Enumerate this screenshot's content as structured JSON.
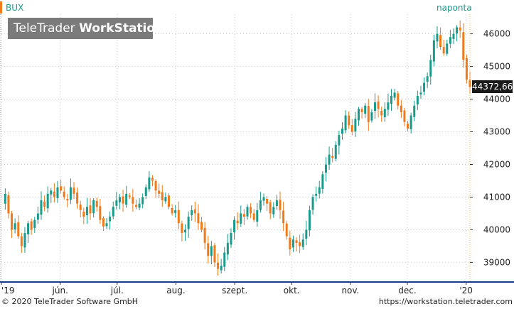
{
  "symbol": "BUX",
  "period": "naponta",
  "watermark": {
    "brand": "TeleTrader",
    "product": "WorkStation"
  },
  "last_value_label": "44372,66",
  "footer": {
    "copyright": "© 2020 TeleTrader Software GmbH",
    "url": "https://workstation.teletrader.com"
  },
  "colors": {
    "up": "#1a9a8a",
    "down": "#f07a1a",
    "grid": "#cccccc",
    "axis": "#1a3a8a"
  },
  "chart_data": {
    "type": "candlestick",
    "title": "BUX",
    "x_range": [
      "2019-05-01",
      "2020-01-03"
    ],
    "ylim": [
      38400,
      46600
    ],
    "y_ticks": [
      39000,
      40000,
      41000,
      42000,
      43000,
      44000,
      45000,
      46000
    ],
    "y_tick_labels": [
      "39000",
      "40000",
      "41000",
      "42000",
      "43000",
      "44000",
      "45000",
      "46000"
    ],
    "x_tick_labels": [
      "'19",
      "jún.",
      "júl.",
      "aug.",
      "szept.",
      "okt.",
      "nov.",
      "dec.",
      "'20"
    ],
    "x_tick_dates": [
      "2019-05-01",
      "2019-06-01",
      "2019-07-01",
      "2019-08-01",
      "2019-09-01",
      "2019-10-01",
      "2019-11-01",
      "2019-12-01",
      "2020-01-01"
    ],
    "last_value": 44372.66,
    "grid": true,
    "closes": [
      41100,
      40500,
      40000,
      40200,
      39800,
      39500,
      39900,
      40200,
      40000,
      40300,
      40500,
      40900,
      40700,
      41100,
      41200,
      41000,
      41300,
      41200,
      41000,
      40900,
      41300,
      41100,
      40800,
      40600,
      40400,
      40700,
      40500,
      40900,
      40700,
      40300,
      40100,
      40200,
      40400,
      40700,
      40900,
      41000,
      40800,
      41100,
      41000,
      40800,
      40700,
      40800,
      41000,
      41300,
      41600,
      41500,
      41200,
      41100,
      40900,
      41000,
      40700,
      40500,
      40600,
      40200,
      39900,
      40000,
      40400,
      40600,
      40500,
      40200,
      40000,
      39600,
      39200,
      39500,
      39000,
      38800,
      38900,
      39300,
      39600,
      39900,
      40300,
      40200,
      40500,
      40400,
      40700,
      40500,
      40300,
      40600,
      40900,
      41000,
      40800,
      40500,
      40700,
      40900,
      40600,
      40200,
      39800,
      39400,
      39700,
      39600,
      39500,
      39700,
      40000,
      40600,
      41000,
      41100,
      41300,
      41700,
      42000,
      42300,
      42200,
      42600,
      42900,
      43100,
      43500,
      43200,
      43000,
      43400,
      43700,
      43600,
      43800,
      43300,
      43600,
      43900,
      43700,
      43500,
      43700,
      43900,
      44100,
      44200,
      43800,
      43600,
      43300,
      43100,
      43500,
      43800,
      44100,
      44200,
      44500,
      44700,
      45200,
      45800,
      46000,
      45600,
      45400,
      45700,
      45900,
      46000,
      46200,
      46100,
      45200,
      44600,
      44372.66
    ]
  }
}
